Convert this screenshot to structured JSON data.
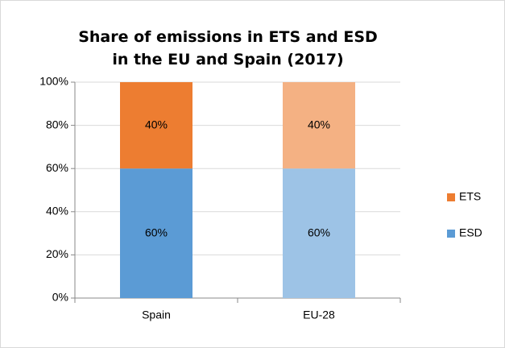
{
  "chart_data": {
    "type": "stacked_bar",
    "title": "Share of emissions in ETS and ESD in the EU and Spain (2017)",
    "categories": [
      "Spain",
      "EU-28"
    ],
    "series": [
      {
        "name": "ESD",
        "color": "#5b9bd5",
        "colors": [
          "#5b9bd5",
          "#9dc3e6"
        ],
        "values": [
          60,
          60
        ],
        "value_labels": [
          "60%",
          "60%"
        ]
      },
      {
        "name": "ETS",
        "color": "#ed7d31",
        "colors": [
          "#ed7d31",
          "#f4b183"
        ],
        "values": [
          40,
          40
        ],
        "value_labels": [
          "40%",
          "40%"
        ]
      }
    ],
    "ylim": [
      0,
      100
    ],
    "yticks": [
      {
        "value": 0,
        "label": "0%"
      },
      {
        "value": 20,
        "label": "20%"
      },
      {
        "value": 40,
        "label": "40%"
      },
      {
        "value": 60,
        "label": "60%"
      },
      {
        "value": 80,
        "label": "80%"
      },
      {
        "value": 100,
        "label": "100%"
      }
    ],
    "grid": true,
    "legend": "right"
  }
}
